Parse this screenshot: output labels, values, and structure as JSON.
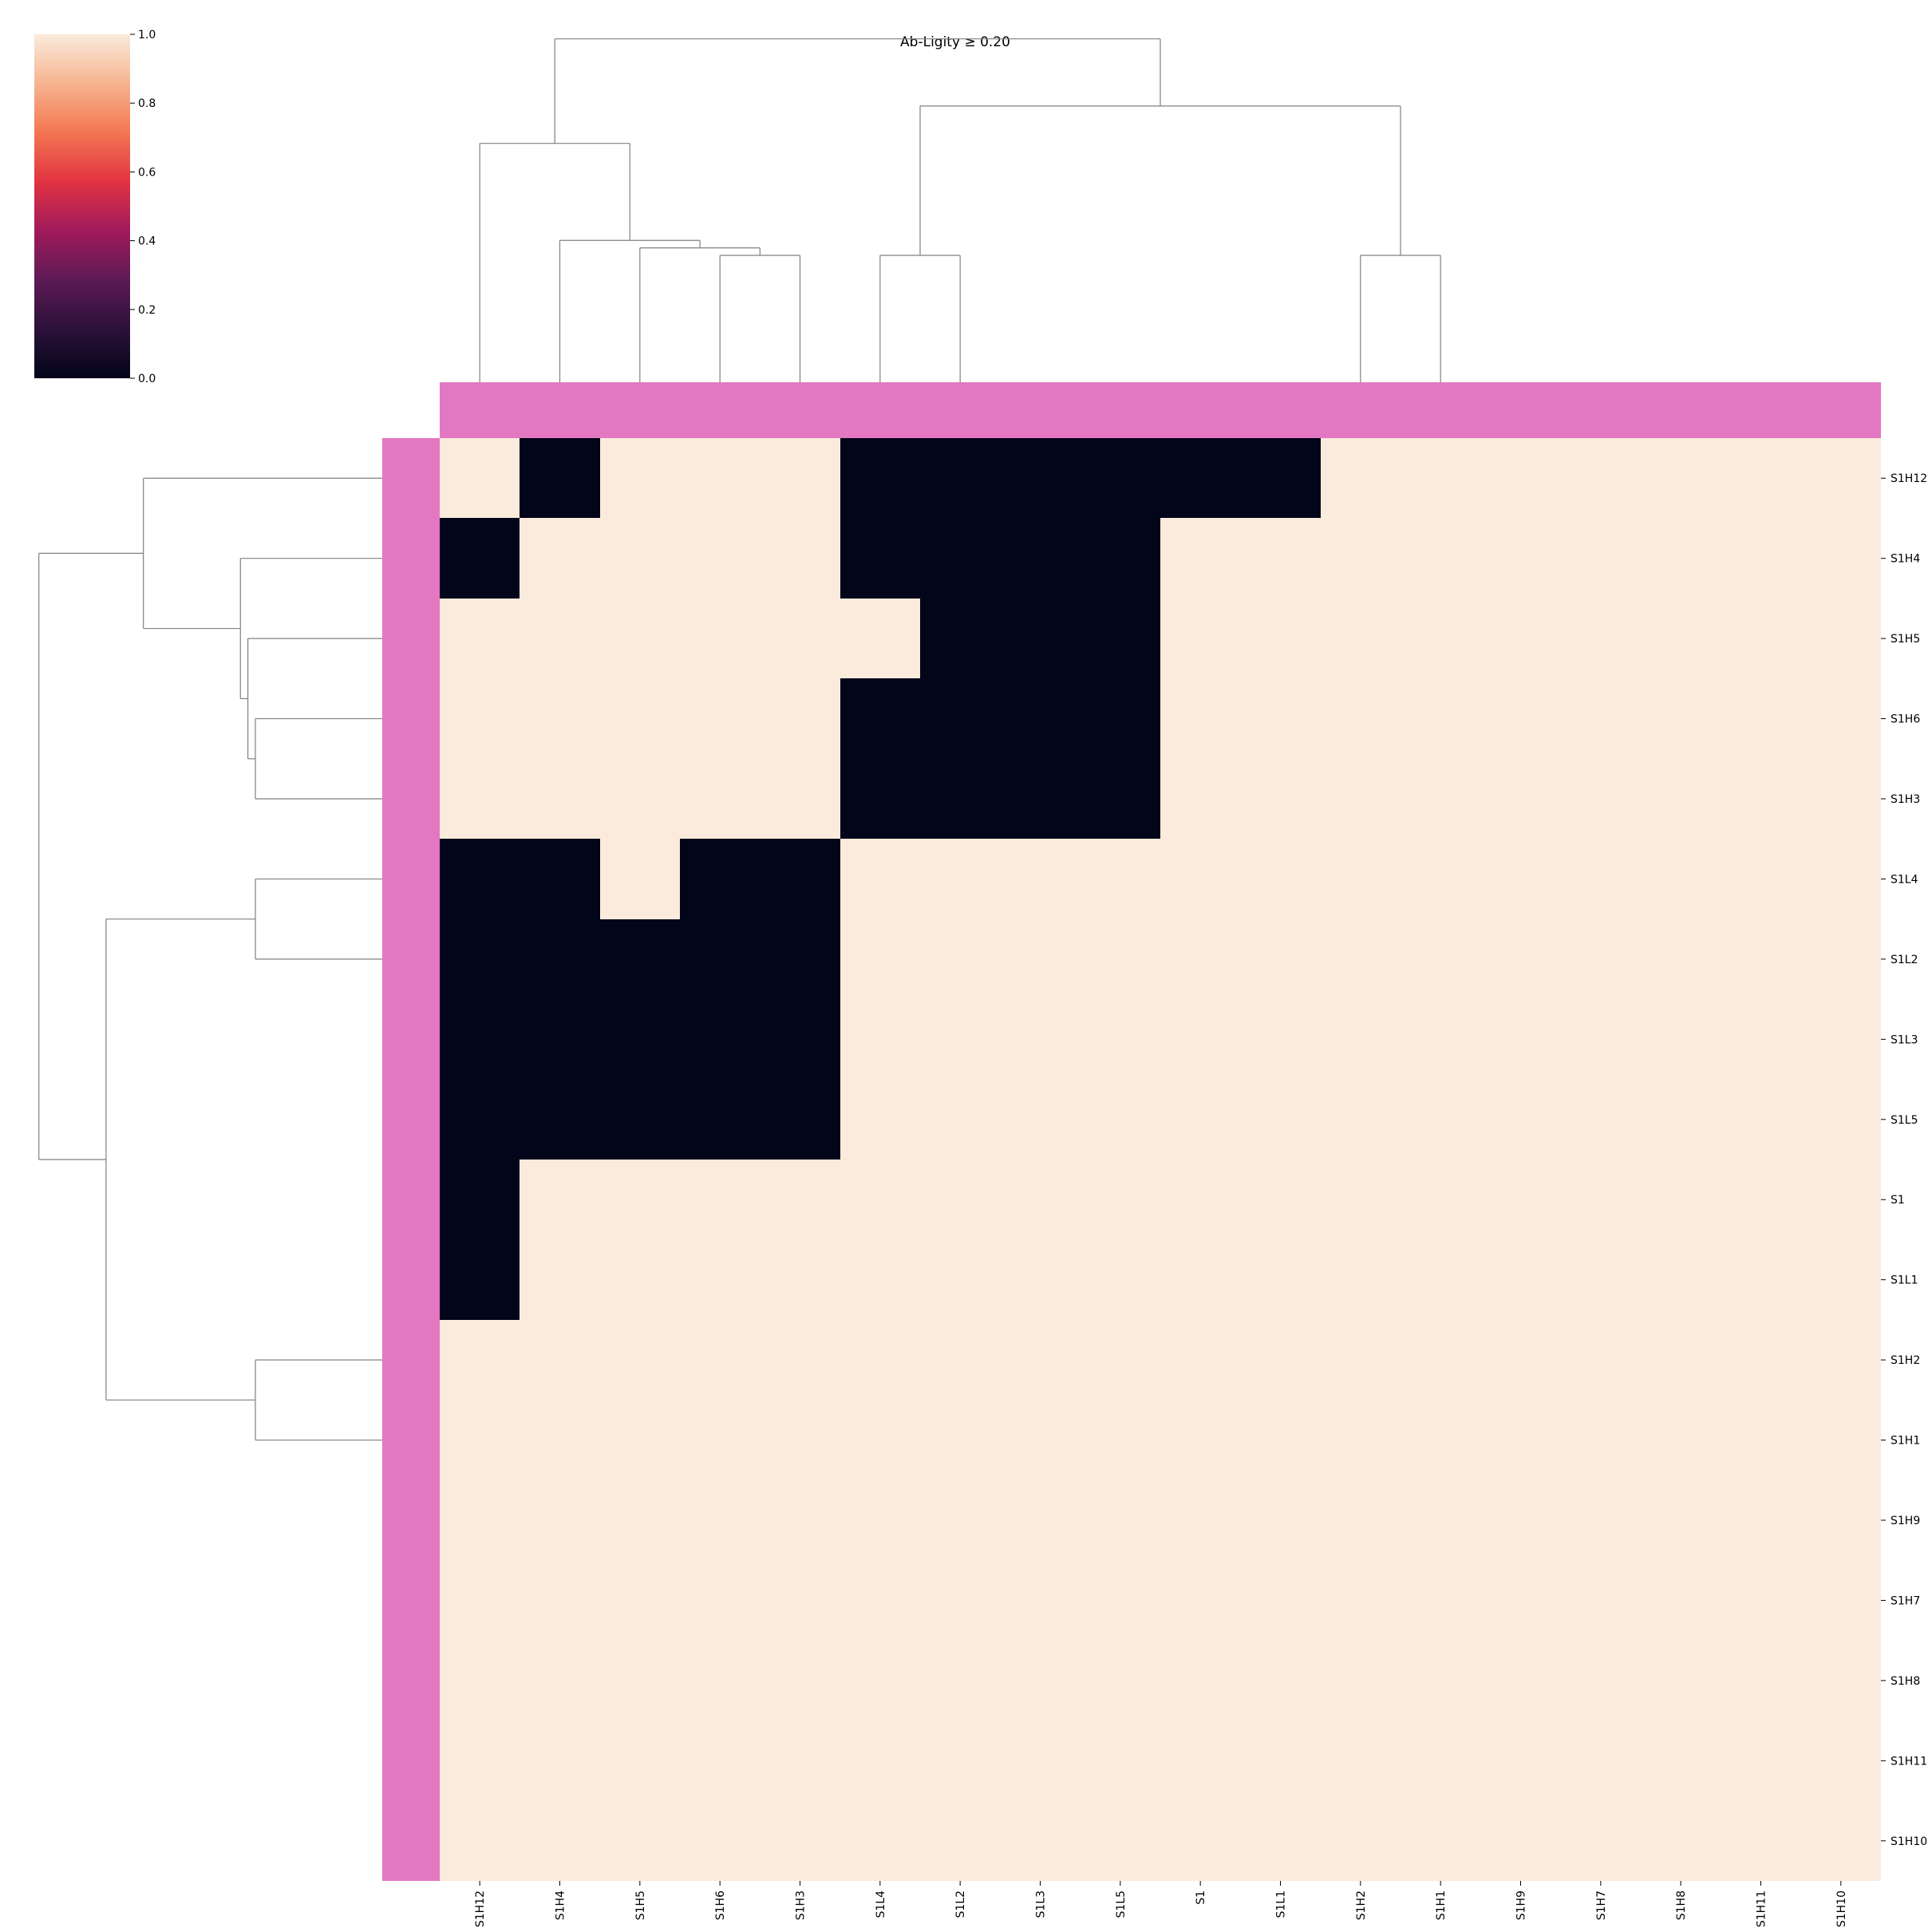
{
  "chart_data": {
    "type": "heatmap",
    "title": "Ab-Ligity ≥ 0.20",
    "labels": [
      "S1H12",
      "S1H4",
      "S1H5",
      "S1H6",
      "S1H3",
      "S1L4",
      "S1L2",
      "S1L3",
      "S1L5",
      "S1",
      "S1L1",
      "S1H2",
      "S1H1",
      "S1H9",
      "S1H7",
      "S1H8",
      "S1H11",
      "S1H10"
    ],
    "row_labels": [
      "S1H12",
      "S1H4",
      "S1H5",
      "S1H6",
      "S1H3",
      "S1L4",
      "S1L2",
      "S1L3",
      "S1L5",
      "S1",
      "S1L1",
      "S1H2",
      "S1H1",
      "S1H9",
      "S1H7",
      "S1H8",
      "S1H11",
      "S1H10"
    ],
    "col_labels": [
      "S1H12",
      "S1H4",
      "S1H5",
      "S1H6",
      "S1H3",
      "S1L4",
      "S1L2",
      "S1L3",
      "S1L5",
      "S1",
      "S1L1",
      "S1H2",
      "S1H1",
      "S1H9",
      "S1H7",
      "S1H8",
      "S1H11",
      "S1H10"
    ],
    "matrix": [
      [
        1,
        0,
        1,
        1,
        1,
        0,
        0,
        0,
        0,
        0,
        0,
        1,
        1,
        1,
        1,
        1,
        1,
        1
      ],
      [
        0,
        1,
        1,
        1,
        1,
        0,
        0,
        0,
        0,
        1,
        1,
        1,
        1,
        1,
        1,
        1,
        1,
        1
      ],
      [
        1,
        1,
        1,
        1,
        1,
        1,
        0,
        0,
        0,
        1,
        1,
        1,
        1,
        1,
        1,
        1,
        1,
        1
      ],
      [
        1,
        1,
        1,
        1,
        1,
        0,
        0,
        0,
        0,
        1,
        1,
        1,
        1,
        1,
        1,
        1,
        1,
        1
      ],
      [
        1,
        1,
        1,
        1,
        1,
        0,
        0,
        0,
        0,
        1,
        1,
        1,
        1,
        1,
        1,
        1,
        1,
        1
      ],
      [
        0,
        0,
        1,
        0,
        0,
        1,
        1,
        1,
        1,
        1,
        1,
        1,
        1,
        1,
        1,
        1,
        1,
        1
      ],
      [
        0,
        0,
        0,
        0,
        0,
        1,
        1,
        1,
        1,
        1,
        1,
        1,
        1,
        1,
        1,
        1,
        1,
        1
      ],
      [
        0,
        0,
        0,
        0,
        0,
        1,
        1,
        1,
        1,
        1,
        1,
        1,
        1,
        1,
        1,
        1,
        1,
        1
      ],
      [
        0,
        0,
        0,
        0,
        0,
        1,
        1,
        1,
        1,
        1,
        1,
        1,
        1,
        1,
        1,
        1,
        1,
        1
      ],
      [
        0,
        1,
        1,
        1,
        1,
        1,
        1,
        1,
        1,
        1,
        1,
        1,
        1,
        1,
        1,
        1,
        1,
        1
      ],
      [
        0,
        1,
        1,
        1,
        1,
        1,
        1,
        1,
        1,
        1,
        1,
        1,
        1,
        1,
        1,
        1,
        1,
        1
      ],
      [
        1,
        1,
        1,
        1,
        1,
        1,
        1,
        1,
        1,
        1,
        1,
        1,
        1,
        1,
        1,
        1,
        1,
        1
      ],
      [
        1,
        1,
        1,
        1,
        1,
        1,
        1,
        1,
        1,
        1,
        1,
        1,
        1,
        1,
        1,
        1,
        1,
        1
      ],
      [
        1,
        1,
        1,
        1,
        1,
        1,
        1,
        1,
        1,
        1,
        1,
        1,
        1,
        1,
        1,
        1,
        1,
        1
      ],
      [
        1,
        1,
        1,
        1,
        1,
        1,
        1,
        1,
        1,
        1,
        1,
        1,
        1,
        1,
        1,
        1,
        1,
        1
      ],
      [
        1,
        1,
        1,
        1,
        1,
        1,
        1,
        1,
        1,
        1,
        1,
        1,
        1,
        1,
        1,
        1,
        1,
        1
      ],
      [
        1,
        1,
        1,
        1,
        1,
        1,
        1,
        1,
        1,
        1,
        1,
        1,
        1,
        1,
        1,
        1,
        1,
        1
      ],
      [
        1,
        1,
        1,
        1,
        1,
        1,
        1,
        1,
        1,
        1,
        1,
        1,
        1,
        1,
        1,
        1,
        1,
        1
      ]
    ],
    "vlim": [
      0,
      1
    ],
    "colorbar": {
      "ticks": [
        "0.0",
        "0.2",
        "0.4",
        "0.6",
        "0.8",
        "1.0"
      ],
      "tick_values": [
        0,
        0.2,
        0.4,
        0.6,
        0.8,
        1.0
      ],
      "placement": "top-left"
    },
    "colormap_stops": [
      "#03051a",
      "#2b1139",
      "#5d1a55",
      "#a11a5b",
      "#e13342",
      "#f37651",
      "#f6b48f",
      "#faebdd"
    ],
    "low_color": "#03051a",
    "high_color": "#faebdd",
    "group_color": "#e377c2",
    "dendrogram": {
      "link_color": "#808080",
      "merges": [
        {
          "a": "leaf:3",
          "b": "leaf:4",
          "h": 0.85
        },
        {
          "a": "leaf:2",
          "b": "node:0",
          "h": 0.9
        },
        {
          "a": "leaf:1",
          "b": "node:1",
          "h": 0.95
        },
        {
          "a": "leaf:5",
          "b": "leaf:6",
          "h": 0.85
        },
        {
          "a": "leaf:11",
          "b": "leaf:12",
          "h": 0.85
        },
        {
          "a": "leaf:0",
          "b": "node:2",
          "h": 1.6
        },
        {
          "a": "node:3",
          "b": "node:4",
          "h": 1.85
        },
        {
          "a": "node:5",
          "b": "node:6",
          "h": 2.3
        }
      ],
      "max_height": 2.4
    }
  }
}
